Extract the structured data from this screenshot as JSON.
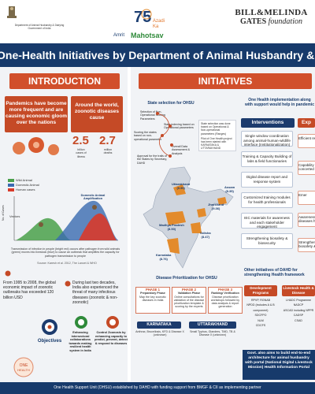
{
  "header": {
    "ministry_line1": "Department of Animal Husbandry & Dairying",
    "ministry_line2": "Government of India",
    "azadi_number": "75",
    "azadi_line1": "Azadi",
    "azadi_line2": "Ka",
    "azadi_line3": "Amrit",
    "azadi_line4": "Mahotsav",
    "gates_line1": "BILL&MELINDA",
    "gates_line2": "GATES",
    "gates_line3": "foundation"
  },
  "title": "One-Health Initiatives by Department of Animal Husbandry & Dairying",
  "intro": {
    "heading": "INTRODUCTION",
    "pandemics_text": "Pandemics have become more frequent and are causing economic gloom over the nations",
    "zoonotic_text": "Around the world, zoonotic diseases cause",
    "stat1_value": "2.5",
    "stat1_label1": "billion",
    "stat1_label2": "cases of",
    "stat1_label3": "illness",
    "stat2_value": "2.7",
    "stat2_label1": "million",
    "stat2_label2": "deaths",
    "legend_wild": "Wild Animal",
    "legend_domestic": "Domestic Animal",
    "legend_human": "Human cases",
    "chart_label_vectors": "Vectors",
    "chart_label_domestic": "Domestic Animal Amplification",
    "chart_axis_label": "No. of Cases",
    "chart_caption": "Transmission of infection in people (bright red) occurs after pathogen from wild animals (green) moves into livestock (blue) to cause an outbreak that amplifies the capacity for pathogen transmission to people",
    "chart_source": "Source: Karesh et al. 2012, The Lancet & WHO",
    "para1": "From 1995 to 2008, the global economic impact of zoonotic outbreaks has exceeded 120 billion USD",
    "para2": "During last two decades, India also experienced the threat of many infectious diseases (zoonotic & non-zoonotic)",
    "objectives_label": "Objectives",
    "obj1": "Enhancing intersectoral collaborations towards making resilient health system in India",
    "obj2": "Control Zoonosis by enhancing capacity to predict, prevent, detect & respond to diseases",
    "seal_line1": "ONE",
    "seal_line2": "HEALTH"
  },
  "initiatives": {
    "heading": "INITIATIVES",
    "state_selection_title": "State selection for OHSU",
    "state_selection_steps": [
      "Selection of Non-Operational Scoring Parameters",
      "State indexing based on Operational parameters",
      "Scoring the states based on non-operational parameter",
      "Overall Data Assessment & Analysis",
      "Approval for the trails of the States by Secretary, DAHD"
    ],
    "state_selection_note1": "State selection was done based on Operational & Non-operational parameters (Ranges)",
    "state_selection_note2": "Pilot of One Health project has been started with KARNATAKA & UTTARAKHAND",
    "map_labels": [
      {
        "name": "Uttarakhand",
        "score": "(9.55)"
      },
      {
        "name": "Jharkhand",
        "score": "(9.36)"
      },
      {
        "name": "Assam",
        "score": "(8.35)"
      },
      {
        "name": "Madhya Pradesh",
        "score": "(8.50)"
      },
      {
        "name": "Odisha",
        "score": "(8.47)"
      },
      {
        "name": "Karnataka",
        "score": "(8.76)"
      }
    ],
    "prioritization_title": "Disease Prioritization for OHSU",
    "phases": [
      {
        "label": "PHASE 1",
        "title": "Preparatory Phase",
        "text": "Map the key zoonotic diseases in India"
      },
      {
        "label": "PHASE 2",
        "title": "Validation Phase",
        "text": "Online consultations for validation of the disease prioritization template & scoring by the experts"
      },
      {
        "label": "PHASE 3",
        "title": "Ranking/ Verification",
        "text": "Disease prioritization workshops followed by data analysis & report generation"
      }
    ],
    "karnataka_label": "KARNATAKA",
    "karnataka_text": "Anthrax, Brucellosis, KFD & Disease X (unknown)",
    "uttarakhand_label": "UTTARAKHAND",
    "uttarakhand_text": "Small Typhus, Glanders, TMD, TB & Disease X (unknown)",
    "implementation_title": "One Health implementation along with support would help in pandemic",
    "interventions_label": "Interventions",
    "expected_label": "Exp",
    "interventions": [
      "Single window coordination among animal-human-wildlife interface (Institutionalization)",
      "Training & Capacity Building of labs & field functionaries",
      "Digital disease report and response system",
      "Customized training modules for health professionals",
      "IEC materials for awareness and each stakeholder engagement",
      "Strengthening biosafety & biosecurity"
    ],
    "expected": [
      "Efficient response",
      "Capability & concerted strength",
      "Emer",
      "Awareness diseases high risk",
      "Strengthening biosafety &"
    ],
    "other_initiatives_title": "Other initiatives of DAHD for strengthening Health framework",
    "dev_programs_label": "Development Programs",
    "dev_programs": [
      "RPVP, RGNAB",
      "NPDD (includes A & B component)",
      "SDCFPO",
      "NLM",
      "CDCFS"
    ],
    "livestock_health_label": "Livestock Health & Disease",
    "livestock_health": [
      "LH&DC Programme",
      "NADCP",
      "ASCAD including NPPR",
      "CADSP",
      "CSAD"
    ],
    "govt_text": "Govt. also aims to build end-to-end architecture for animal husbandry with portal (National Digital Livestock Mission) Health Information Portal",
    "footer": "One Health Support Unit (OHSU) established by DAHD with funding support from BMGF & CII as implementing partner"
  }
}
